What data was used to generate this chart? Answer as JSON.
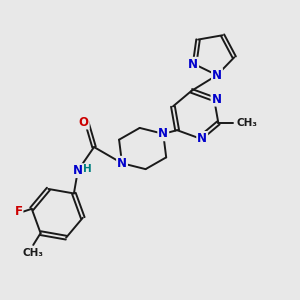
{
  "bg_color": "#e8e8e8",
  "bond_color": "#1a1a1a",
  "N_color": "#0000cc",
  "O_color": "#cc0000",
  "F_color": "#cc0000",
  "H_color": "#008080",
  "C_color": "#1a1a1a",
  "font_size": 8.5,
  "bond_width": 1.4,
  "figsize": [
    3.0,
    3.0
  ],
  "dpi": 100,
  "xlim": [
    0,
    10
  ],
  "ylim": [
    0,
    10
  ]
}
